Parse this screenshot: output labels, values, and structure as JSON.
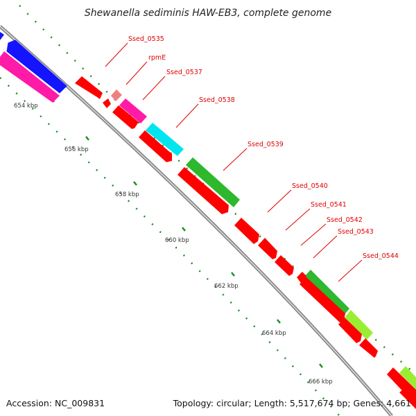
{
  "title": "Shewanella sediminis HAW-EB3, complete genome",
  "footer": {
    "accession": "Accession: NC_009831",
    "summary": "Topology: circular; Length: 5,517,674 bp; Genes: 4,661"
  },
  "scale": {
    "ticks": [
      "654 kbp",
      "656 kbp",
      "658 kbp",
      "660 kbp",
      "662 kbp",
      "664 kbp",
      "666 kbp"
    ]
  },
  "genes": [
    {
      "label": "Ssed_0535",
      "color": "#ff0000"
    },
    {
      "label": "rpmE",
      "color": "#f08080"
    },
    {
      "label": "Ssed_0537",
      "color": "#ff1aa8"
    },
    {
      "label": "Ssed_0538",
      "color": "#00e5ee"
    },
    {
      "label": "Ssed_0539",
      "color": "#2db82d"
    },
    {
      "label": "Ssed_0540",
      "color": "#ff0000"
    },
    {
      "label": "Ssed_0541",
      "color": "#ff0000"
    },
    {
      "label": "Ssed_0542",
      "color": "#ff0000"
    },
    {
      "label": "Ssed_0543",
      "color": "#ff0000"
    },
    {
      "label": "Ssed_0544",
      "color": "#2db82d"
    }
  ],
  "colors": {
    "backbone": "#8c8c8c",
    "dots": "#1a8f1a",
    "red": "#ff0000",
    "blue": "#1414ff",
    "pink": "#ff1aa8",
    "lime": "#99ee33",
    "label_line": "#e00000"
  }
}
